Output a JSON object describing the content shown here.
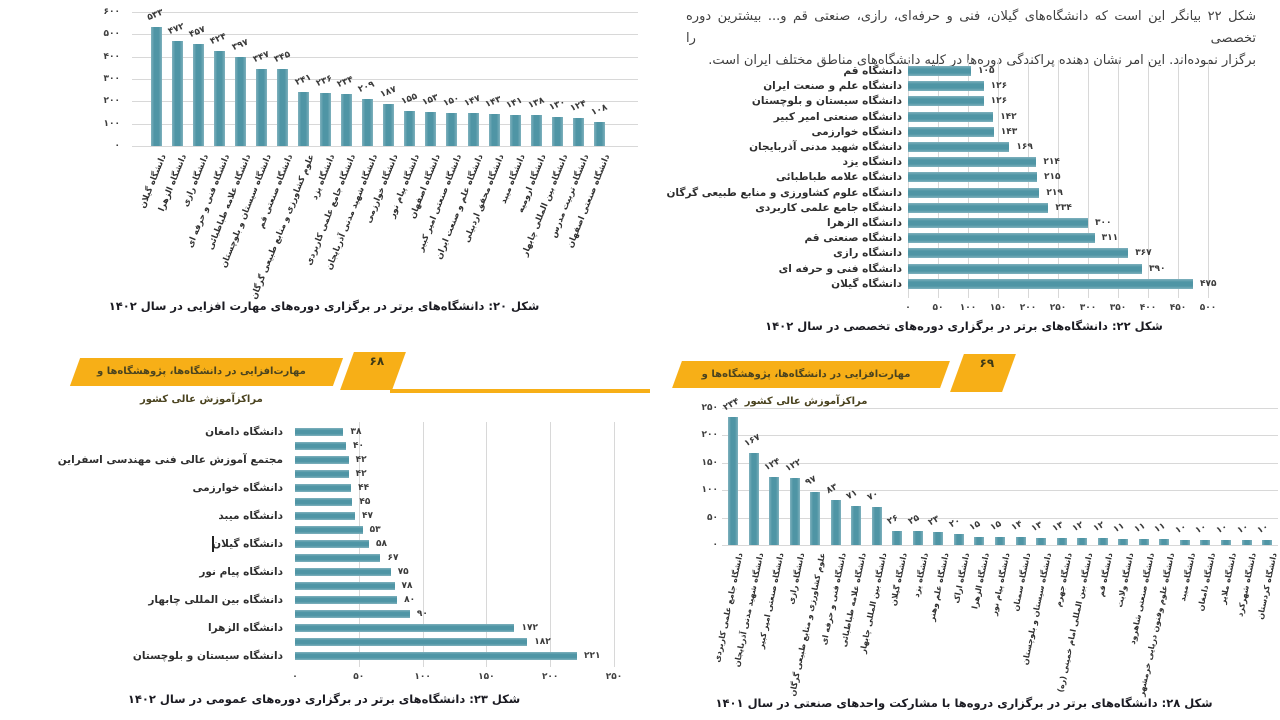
{
  "colors": {
    "bar_teal": "#4f95a5",
    "grid_gray": "#d8d8d8",
    "banner_gold": "#F7AF17",
    "caption_text": "#1b1b22",
    "body_text": "#3f3f3f"
  },
  "banners": {
    "left": {
      "label": "مهارت‌افزایی در دانشگاه‌ها، پژوهشگاه‌ها و مراکزآموزش عالی کشور",
      "page_number": "۶۸"
    },
    "right": {
      "label": "مهارت‌افزایی در دانشگاه‌ها، پژوهشگاه‌ها و مراکزآموزش عالی کشور",
      "page_number": "۶۹"
    }
  },
  "intro": {
    "line1": "شکل ۲۲ بیانگر این است که دانشگاه‌های گیلان، فنی و حرفه‌ای، رازی، صنعتی قم و... بیشترین دوره تخصصی را",
    "line2": "برگزار نموده‌اند. این امر نشان دهنده پراکندگی دوره‌ها در کلیه دانشگاه‌های مناطق مختلف ایران است."
  },
  "chart_data": [
    {
      "id": "fig20",
      "type": "bar",
      "orientation": "vertical",
      "title": "شکل ۲۰: دانشگاه‌های برتر در برگزاری دوره‌های مهارت افزایی در سال ۱۴۰۲",
      "categories": [
        "دانشگاه گیلان",
        "دانشگاه الزهرا",
        "دانشگاه رازی",
        "دانشگاه فنی و حرفه ای",
        "دانشگاه علامه طباطبائی",
        "دانشگاه سیستان و بلوچستان",
        "دانشگاه صنعتی قم",
        "علوم کشاورزی و منابع طبیعی گرگان",
        "دانشگاه یزد",
        "دانشگاه جامع علمی کاربردی",
        "دانشگاه شهید مدنی آذربایجان",
        "دانشگاه خوارزمی",
        "دانشگاه پیام نور",
        "دانشگاه اصفهان",
        "دانشگاه صنعتی امیر کبیر",
        "دانشگاه علم و صنعت ایران",
        "دانشگاه محقق اردبیلی",
        "دانشگاه میبد",
        "دانشگاه ارومیه",
        "دانشگاه بین المللی چابهار",
        "دانشگاه تربیت مدرس",
        "دانشگاه صنعتی اصفهان"
      ],
      "values": [
        533,
        472,
        457,
        424,
        397,
        347,
        345,
        241,
        236,
        234,
        209,
        187,
        155,
        153,
        150,
        147,
        143,
        141,
        138,
        130,
        124,
        108
      ],
      "value_labels": [
        "۵۳۳",
        "۴۷۲",
        "۴۵۷",
        "۴۲۴",
        "۳۹۷",
        "۳۴۷",
        "۳۴۵",
        "۲۴۱",
        "۲۳۶",
        "۲۳۴",
        "۲۰۹",
        "۱۸۷",
        "۱۵۵",
        "۱۵۳",
        "۱۵۰",
        "۱۴۷",
        "۱۴۳",
        "۱۴۱",
        "۱۳۸",
        "۱۳۰",
        "۱۲۴",
        "۱۰۸"
      ],
      "y_ticks": [
        "۰",
        "۱۰۰",
        "۲۰۰",
        "۳۰۰",
        "۴۰۰",
        "۵۰۰",
        "۶۰۰"
      ],
      "ylim": [
        0,
        600
      ],
      "grid": true,
      "legend": false
    },
    {
      "id": "fig22",
      "type": "bar",
      "orientation": "horizontal",
      "title": "شکل ۲۲: دانشگاه‌های برتر در برگزاری دوره‌های تخصصی در سال ۱۴۰۲",
      "categories": [
        "دانشگاه قم",
        "دانشگاه علم و صنعت ایران",
        "دانشگاه سیستان و بلوچستان",
        "دانشگاه صنعتی امیر کبیر",
        "دانشگاه خوارزمی",
        "دانشگاه شهید مدنی آذربایجان",
        "دانشگاه یزد",
        "دانشگاه علامه طباطبائی",
        "دانشگاه علوم کشاورزی و منابع طبیعی گرگان",
        "دانشگاه جامع علمی کاربردی",
        "دانشگاه الزهرا",
        "دانشگاه صنعتی قم",
        "دانشگاه رازی",
        "دانشگاه فنی و حرفه ای",
        "دانشگاه گیلان"
      ],
      "values": [
        105,
        126,
        126,
        142,
        143,
        169,
        214,
        215,
        219,
        234,
        300,
        311,
        367,
        390,
        475
      ],
      "value_labels": [
        "۱۰۵",
        "۱۲۶",
        "۱۲۶",
        "۱۴۲",
        "۱۴۳",
        "۱۶۹",
        "۲۱۴",
        "۲۱۵",
        "۲۱۹",
        "۲۳۴",
        "۳۰۰",
        "۳۱۱",
        "۳۶۷",
        "۳۹۰",
        "۴۷۵"
      ],
      "x_ticks": [
        "۰",
        "۵۰",
        "۱۰۰",
        "۱۵۰",
        "۲۰۰",
        "۲۵۰",
        "۳۰۰",
        "۳۵۰",
        "۴۰۰",
        "۴۵۰",
        "۵۰۰"
      ],
      "xlim": [
        0,
        500
      ],
      "grid": true,
      "legend": false
    },
    {
      "id": "fig23",
      "type": "bar",
      "orientation": "horizontal",
      "title": "شکل ۲۳: دانشگاه‌های برتر در برگزاری دوره‌های عمومی در سال ۱۴۰۲",
      "categories": [
        "دانشگاه دامغان",
        "",
        "مجتمع آموزش عالی فنی مهندسی اسفراین",
        "",
        "دانشگاه خوارزمی",
        "",
        "دانشگاه میبد",
        "",
        "دانشگاه گیلان",
        "",
        "دانشگاه پیام نور",
        "",
        "دانشگاه بین المللی چابهار",
        "",
        "دانشگاه الزهرا",
        "",
        "دانشگاه سیستان و بلوچستان"
      ],
      "values": [
        38,
        40,
        42,
        42,
        44,
        45,
        47,
        53,
        58,
        67,
        75,
        78,
        80,
        90,
        172,
        182,
        221
      ],
      "value_labels": [
        "۳۸",
        "۴۰",
        "۴۲",
        "۴۲",
        "۴۴",
        "۴۵",
        "۴۷",
        "۵۳",
        "۵۸",
        "۶۷",
        "۷۵",
        "۷۸",
        "۸۰",
        "۹۰",
        "۱۷۲",
        "۱۸۲",
        "۲۲۱"
      ],
      "x_ticks": [
        "۰",
        "۵۰",
        "۱۰۰",
        "۱۵۰",
        "۲۰۰",
        "۲۵۰"
      ],
      "xlim": [
        0,
        250
      ],
      "grid": true,
      "legend": false
    },
    {
      "id": "fig28",
      "type": "bar",
      "orientation": "vertical",
      "title": "شکل ۲۸: دانشگاه‌های برتر در برگزاری دروه‌ها با مشارکت واحدهای صنعتی در سال ۱۴۰۱",
      "categories": [
        "دانشگاه جامع علمی کاربردی",
        "دانشگاه شهید مدنی آذربایجان",
        "دانشگاه صنعتی امیر کبیر",
        "دانشگاه رازی",
        "علوم کشاورزی و منابع طبیعی گرگان",
        "دانشگاه فنی و حرفه ای",
        "دانشگاه علامه طباطبائی",
        "دانشگاه بین المللی چابهار",
        "دانشگاه گیلان",
        "دانشگاه یزد",
        "دانشگاه علم وهنر",
        "دانشگاه اراک",
        "دانشگاه الزهرا",
        "دانشگاه پیام نور",
        "دانشگاه سمنان",
        "دانشگاه سیستان و بلوچستان",
        "دانشگاه جهرم",
        "دانشگاه بین المللی امام خمینی (ره)",
        "دانشگاه قم",
        "دانشگاه ولایت",
        "دانشگاه صنعتی شاهرود",
        "دانشگاه علوم وفنون دریایی خرمشهر",
        "دانشگاه میبد",
        "دانشگاه دامغان",
        "دانشگاه ملایر",
        "دانشگاه شهرکرد",
        "دانشگاه کردستان"
      ],
      "values": [
        234,
        167,
        124,
        122,
        97,
        83,
        71,
        70,
        26,
        25,
        23,
        20,
        15,
        15,
        14,
        13,
        13,
        12,
        12,
        11,
        11,
        11,
        10,
        10,
        10,
        10,
        10
      ],
      "value_labels": [
        "۲۳۴",
        "۱۶۷",
        "۱۲۴",
        "۱۲۲",
        "۹۷",
        "۸۳",
        "۷۱",
        "۷۰",
        "۲۶",
        "۲۵",
        "۲۳",
        "۲۰",
        "۱۵",
        "۱۵",
        "۱۴",
        "۱۳",
        "۱۳",
        "۱۲",
        "۱۲",
        "۱۱",
        "۱۱",
        "۱۱",
        "۱۰",
        "۱۰",
        "۱۰",
        "۱۰",
        "۱۰"
      ],
      "y_ticks": [
        "۰",
        "۵۰",
        "۱۰۰",
        "۱۵۰",
        "۲۰۰",
        "۲۵۰"
      ],
      "ylim": [
        0,
        250
      ],
      "grid": true,
      "legend": false
    }
  ]
}
